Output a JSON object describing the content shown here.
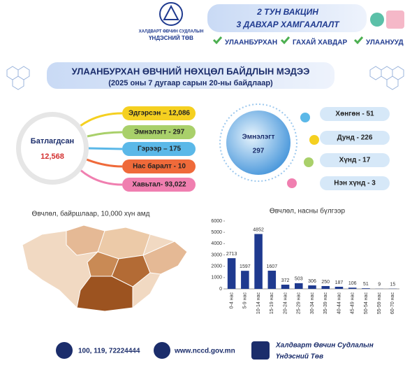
{
  "logo": {
    "line1": "ХАЛДВАРТ ӨВЧИН СУДЛАЛЫН",
    "line2": "ҮНДЭСНИЙ ТӨВ"
  },
  "banner": {
    "line1": "2 ТУН ВАКЦИН",
    "line2": "3 ДАВХАР ХАМГААЛАЛТ",
    "checks": [
      "УЛААНБУРХАН",
      "ГАХАЙ ХАВДАР",
      "УЛААНУУД"
    ]
  },
  "header": {
    "title": "УЛААНБУРХАН ӨВЧНИЙ НӨХЦӨЛ БАЙДЛЫН МЭДЭЭ",
    "subtitle": "(2025 оны 7 дугаар сарын 20-ны байдлаар)"
  },
  "confirmed": {
    "label": "Батлагдсан",
    "value": "12,568",
    "items": [
      "Эдгэрсэн – 12,086",
      "Эмнэлэгт - 297",
      "Гэрээр – 175",
      "Нас баралт - 10",
      "Хавьтал- 93,022"
    ]
  },
  "hospital": {
    "label": "Эмнэлэгт",
    "value": "297",
    "items": [
      "Хөнгөн - 51",
      "Дунд - 226",
      "Хүнд - 17",
      "Нэн хүнд - 3"
    ]
  },
  "map": {
    "title": "Өвчлөл, байршлаар, 10,000 хүн амд"
  },
  "chart_data": {
    "type": "bar",
    "title": "Өвчлөл, насны бүлгээр",
    "categories": [
      "0-4 нас",
      "5-9 нас",
      "10-14 нас",
      "15-19 нас",
      "20-24 нас",
      "25-29 нас",
      "30-34 нас",
      "35-39 нас",
      "40-44 нас",
      "45-49 нас",
      "50-54 нас",
      "55-59 нас",
      "60-70 нас"
    ],
    "values": [
      2713,
      1597,
      4852,
      1607,
      372,
      503,
      306,
      250,
      187,
      106,
      51,
      9,
      15
    ],
    "color": "#1f3a8f",
    "ylim": [
      0,
      6000
    ],
    "yticks": [
      0,
      1000,
      2000,
      3000,
      4000,
      5000,
      6000
    ]
  },
  "footer": {
    "phone": "100, 119, 72224444",
    "web": "www.nccd.gov.mn",
    "org_line1": "Халдварт Өвчин Судлалын",
    "org_line2": "Үндэсний Төв"
  }
}
